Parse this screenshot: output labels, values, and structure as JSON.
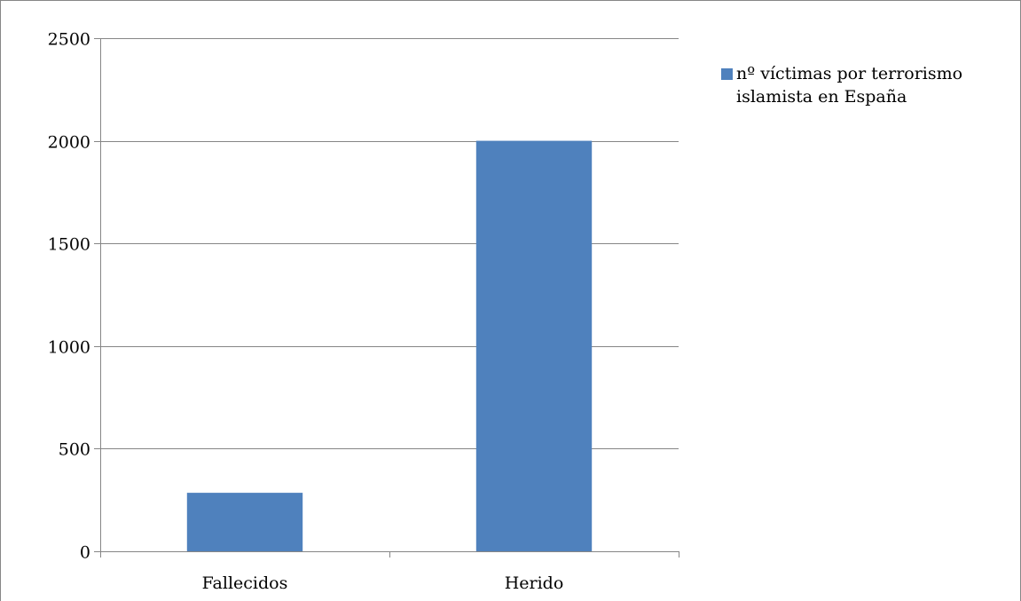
{
  "chart_data": {
    "type": "bar",
    "title": "",
    "xlabel": "",
    "ylabel": "",
    "categories": [
      "Fallecidos",
      "Herido"
    ],
    "series": [
      {
        "name": "nº víctimas por terrorismo islamista en España",
        "values": [
          285,
          2000
        ],
        "color": "#4f81bd"
      }
    ],
    "ylim": [
      0,
      2500
    ],
    "yticks": [
      0,
      500,
      1000,
      1500,
      2000,
      2500
    ],
    "ytick_labels": [
      "0",
      "500",
      "1000",
      "1500",
      "2000",
      "2500"
    ],
    "grid": true,
    "legend_position": "top-right"
  },
  "colors": {
    "bar": "#4f81bd",
    "gridline": "#868686",
    "axis": "#868686",
    "frame": "#868686"
  }
}
